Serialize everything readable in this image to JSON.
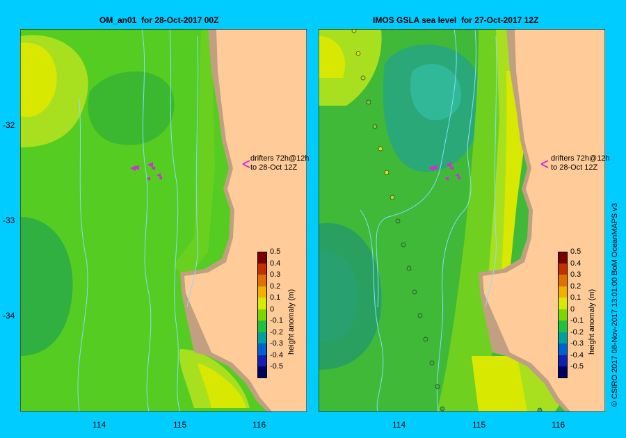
{
  "left_panel": {
    "title": "OM_an01  for 28-Oct-2017 00Z",
    "drifter_note_line1": "drifters 72h@12h",
    "drifter_note_line2": "to 28-Oct 12Z"
  },
  "right_panel": {
    "title": "IMOS GSLA sea level  for 27-Oct-2017 12Z",
    "drifter_note_line1": "drifters 72h@12h",
    "drifter_note_line2": "to 28-Oct 12Z"
  },
  "axes": {
    "y_ticks": [
      "-32",
      "-33",
      "-34"
    ],
    "x_ticks": [
      "114",
      "115",
      "116"
    ]
  },
  "colorbar": {
    "title": "height anomaly (m)",
    "ticks": [
      "0.5",
      "0.4",
      "0.3",
      "0.2",
      "0.1",
      "0",
      "-0.1",
      "-0.2",
      "-0.3",
      "-0.4",
      "-0.5"
    ],
    "colors": [
      "#7a0000",
      "#c03000",
      "#e07000",
      "#f0b000",
      "#d8e800",
      "#7ad800",
      "#20c040",
      "#00a0a0",
      "#0060d0",
      "#1020b0",
      "#000060"
    ]
  },
  "copyright": "© CSIRO 2017   08-Nov-2017 13:01:00 BoM OceanMAPS v3",
  "colors": {
    "background": "#00ccff",
    "land": "#ffcc99",
    "coast": "#c0a080",
    "sea_green": "#55cc22",
    "drifter": "#cc33cc"
  }
}
